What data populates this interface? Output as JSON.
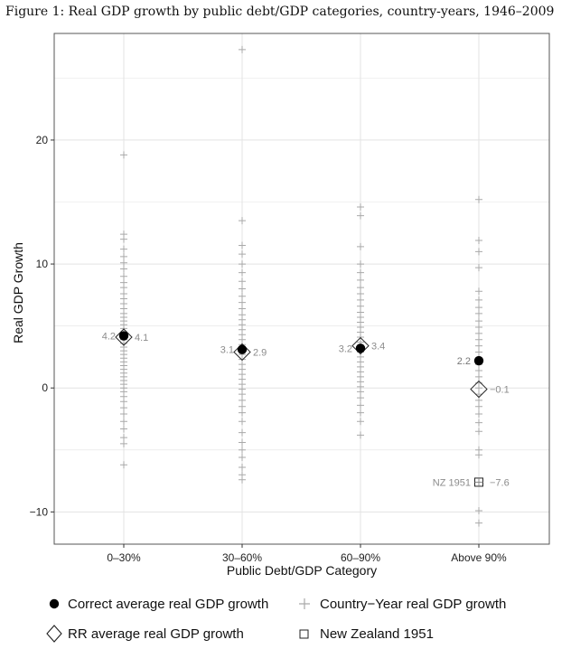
{
  "figure_title": "Figure 1: Real GDP growth by public debt/GDP categories, country-years, 1946–2009",
  "colors": {
    "grid": "#e3e3e3",
    "cross": "#a9a9a9",
    "panel_border": "#555555",
    "point": "#000000"
  },
  "chart_data": {
    "type": "scatter",
    "title": "Figure 1: Real GDP growth by public debt/GDP categories, country-years, 1946–2009",
    "xlabel": "Public Debt/GDP Category",
    "ylabel": "Real GDP Growth",
    "categories": [
      "0–30%",
      "30–60%",
      "60–90%",
      "Above 90%"
    ],
    "ylim": [
      -12.6,
      28.6
    ],
    "yticks": [
      -10,
      0,
      10,
      20
    ],
    "grid": true,
    "series": [
      {
        "name": "Correct average real GDP growth",
        "marker": "filled-circle",
        "values": [
          4.2,
          3.1,
          3.2,
          2.2
        ],
        "labels": [
          "4.2",
          "3.1",
          "3.2",
          "2.2"
        ]
      },
      {
        "name": "RR average real GDP growth",
        "marker": "open-diamond",
        "values": [
          4.1,
          2.9,
          3.4,
          -0.1
        ],
        "labels": [
          "4.1",
          "2.9",
          "3.4",
          "−0.1"
        ]
      },
      {
        "name": "Country−Year real GDP growth",
        "marker": "cross",
        "points_by_category": [
          [
            18.8,
            12.4,
            12.0,
            11.2,
            10.6,
            10.1,
            9.6,
            9.0,
            8.5,
            8.1,
            7.6,
            7.2,
            6.8,
            6.4,
            6.0,
            5.7,
            5.4,
            5.1,
            4.8,
            4.5,
            4.2,
            3.9,
            3.6,
            3.3,
            3.0,
            2.7,
            2.4,
            2.1,
            1.8,
            1.5,
            1.2,
            0.9,
            0.6,
            0.3,
            0.0,
            -0.3,
            -0.7,
            -1.1,
            -1.6,
            -2.1,
            -2.7,
            -3.3,
            -4.0,
            -4.5,
            -6.2
          ],
          [
            27.3,
            13.5,
            11.5,
            10.8,
            10.0,
            9.3,
            8.6,
            8.0,
            7.4,
            6.9,
            6.4,
            5.9,
            5.5,
            5.1,
            4.7,
            4.3,
            3.9,
            3.5,
            3.1,
            2.7,
            2.3,
            1.9,
            1.5,
            1.1,
            0.7,
            0.3,
            -0.1,
            -0.5,
            -1.0,
            -1.5,
            -2.0,
            -2.7,
            -3.6,
            -4.4,
            -5.0,
            -5.6,
            -6.4,
            -7.0,
            -7.4
          ],
          [
            14.6,
            13.9,
            11.4,
            10.0,
            9.3,
            8.7,
            8.1,
            7.6,
            7.1,
            6.6,
            6.1,
            5.7,
            5.3,
            4.9,
            4.5,
            4.1,
            3.7,
            3.3,
            2.9,
            2.5,
            2.1,
            1.7,
            1.3,
            0.9,
            0.5,
            0.1,
            -0.3,
            -0.8,
            -1.4,
            -2.0,
            -2.7,
            -3.8
          ],
          [
            15.2,
            11.9,
            11.0,
            9.7,
            7.8,
            7.1,
            6.5,
            6.0,
            5.4,
            4.9,
            4.4,
            3.9,
            3.4,
            2.9,
            2.4,
            1.9,
            1.4,
            0.9,
            0.4,
            0.0,
            -0.5,
            -1.0,
            -1.5,
            -2.1,
            -2.8,
            -3.5,
            -5.0,
            -5.4,
            -7.6,
            -9.9,
            -10.9
          ]
        ]
      },
      {
        "name": "New Zealand 1951",
        "marker": "open-square",
        "category": "Above 90%",
        "value": -7.6,
        "label": "NZ 1951",
        "value_label": "−7.6"
      }
    ],
    "legend": {
      "position": "bottom",
      "entries": [
        "Correct average real GDP growth",
        "Country−Year real GDP growth",
        "RR average real GDP growth",
        "New Zealand 1951"
      ]
    }
  }
}
